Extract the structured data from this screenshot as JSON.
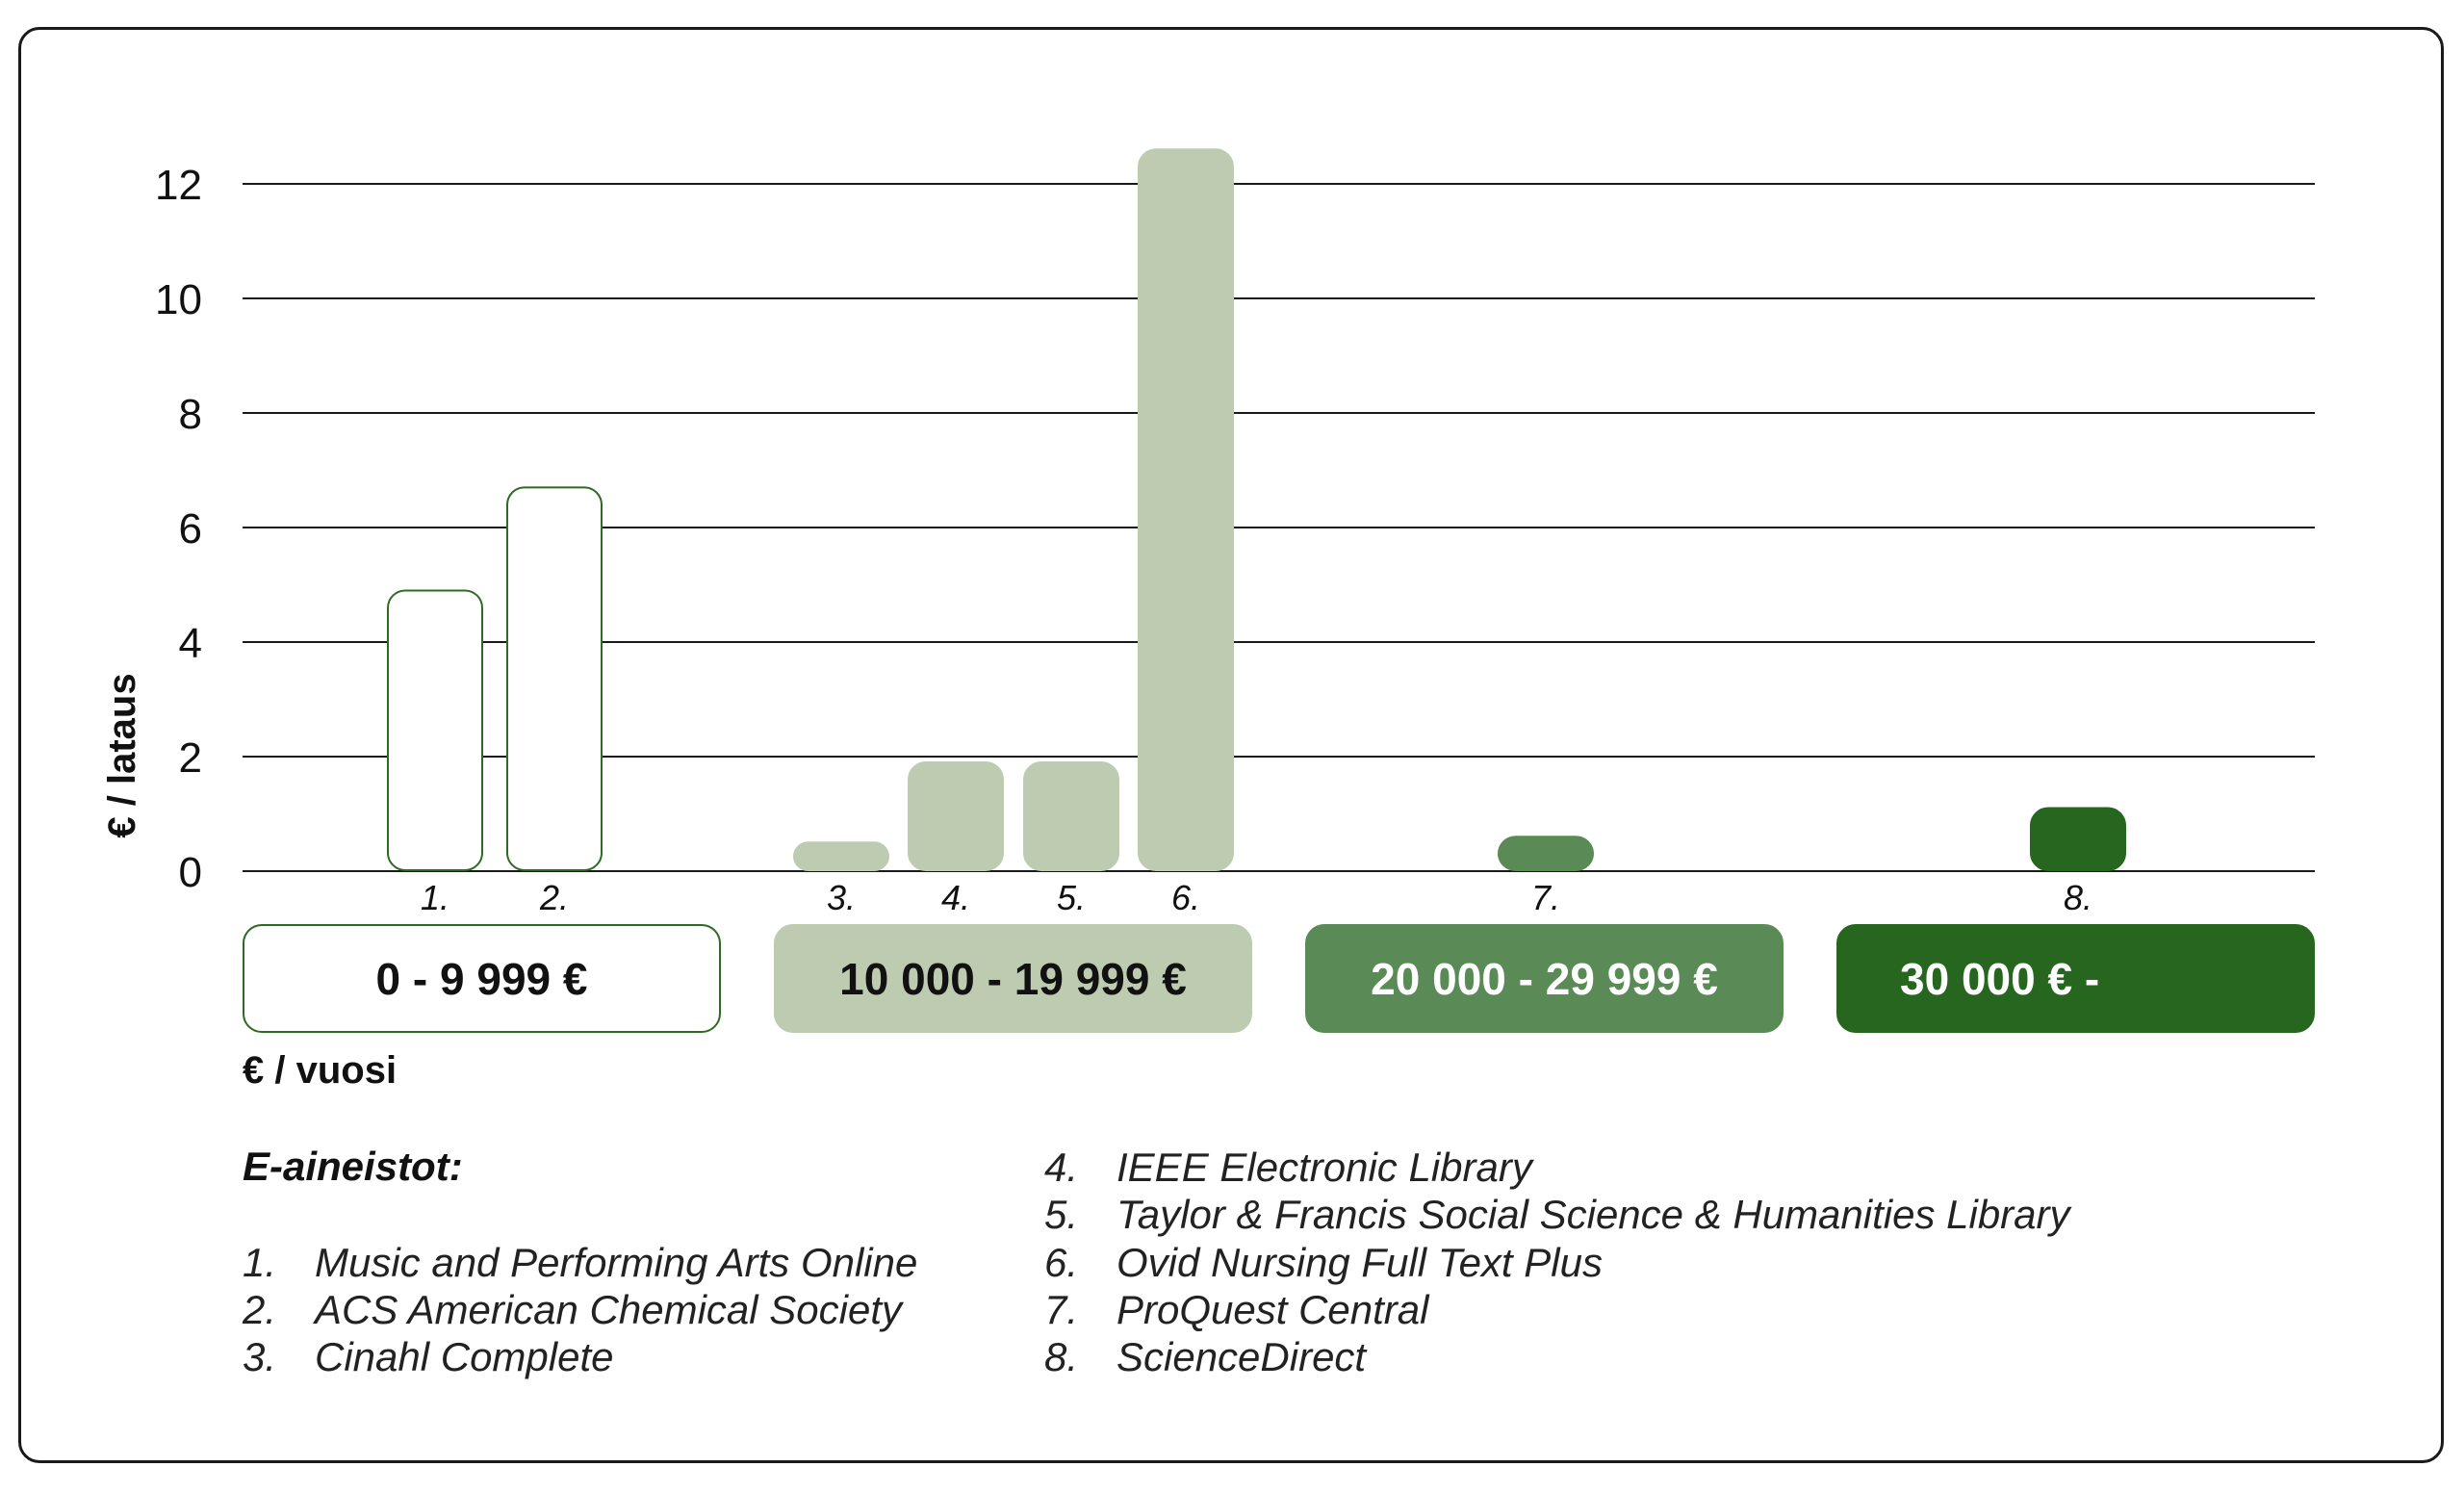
{
  "chart_data": {
    "type": "bar",
    "ylabel": "€ / lataus",
    "xlabel": "€ / vuosi",
    "ylim": [
      0,
      12
    ],
    "yticks": [
      0,
      2,
      4,
      6,
      8,
      10,
      12
    ],
    "grid": true,
    "categories": [
      "1.",
      "2.",
      "3.",
      "4.",
      "5.",
      "6.",
      "7.",
      "8."
    ],
    "values": [
      4.9,
      6.7,
      0.5,
      1.9,
      1.9,
      12.6,
      0.6,
      1.1
    ],
    "groups": [
      0,
      0,
      1,
      1,
      1,
      1,
      2,
      3
    ],
    "price_ranges": [
      {
        "label": "0 - 9 999 €",
        "fill": "#ffffff",
        "stroke": "#2e6b22",
        "text_color": "#111111"
      },
      {
        "label": "10 000 - 19 999 €",
        "fill": "#bdccb0",
        "stroke": "#bdccb0",
        "text_color": "#111111"
      },
      {
        "label": "20 000 - 29 999 €",
        "fill": "#5a8a55",
        "stroke": "#5a8a55",
        "text_color": "#ffffff"
      },
      {
        "label": "30 000 € -",
        "fill": "#26661f",
        "stroke": "#26661f",
        "text_color": "#ffffff"
      }
    ]
  },
  "legend": {
    "title": "E-aineistot:",
    "items": [
      {
        "num": "1.",
        "name": "Music and Performing Arts Online"
      },
      {
        "num": "2.",
        "name": "ACS American Chemical Society"
      },
      {
        "num": "3.",
        "name": "Cinahl Complete"
      },
      {
        "num": "4.",
        "name": "IEEE Electronic Library"
      },
      {
        "num": "5.",
        "name": "Taylor & Francis Social Science & Humanities Library"
      },
      {
        "num": "6.",
        "name": "Ovid Nursing Full Text Plus"
      },
      {
        "num": "7.",
        "name": "ProQuest Central"
      },
      {
        "num": "8.",
        "name": "ScienceDirect"
      }
    ]
  }
}
